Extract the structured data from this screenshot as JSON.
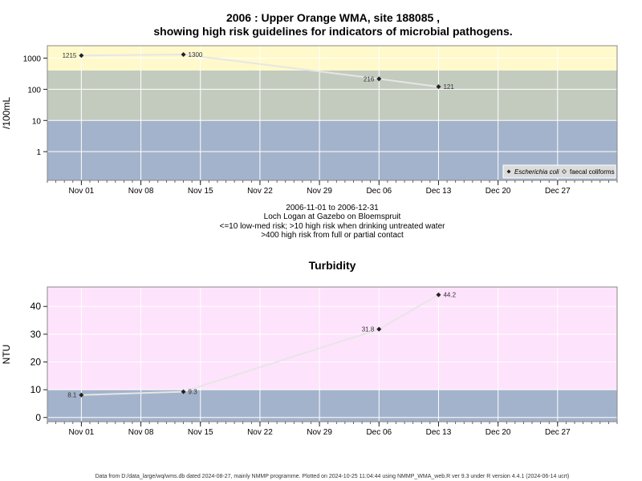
{
  "figure": {
    "title_line1": "2006 : Upper Orange WMA, site 188085 ,",
    "title_line2": "showing high risk guidelines for indicators of microbial pathogens.",
    "footer": "Data from D:/data_large/wq/wms.db dated 2024-08-27, mainly NMMP programme. Plotted on 2024-10-25 11:04:44 using NMMP_WMA_web.R ver 9.3 under R version 4.4.1 (2024-06-14 ucrt)"
  },
  "colors": {
    "band_low": "#a3b3cb",
    "band_mid": "#c3cbbf",
    "band_high": "#fff9cb",
    "turb_low": "#a3b3cb",
    "turb_high": "#fde3fb",
    "line": "#e6e6e6",
    "marker": "#222222"
  },
  "chart_data": [
    {
      "type": "line",
      "title": "",
      "ylabel": "/100mL",
      "yscale": "log",
      "ylim": [
        0.12,
        2500
      ],
      "xlim": [
        "2006-10-28",
        "2007-01-03"
      ],
      "y_ticks": [
        1,
        10,
        100,
        1000
      ],
      "y_tick_labels": [
        "1",
        "10",
        "100",
        "1000"
      ],
      "x_ticks": [
        "2006-11-01",
        "2006-11-08",
        "2006-11-15",
        "2006-11-22",
        "2006-11-29",
        "2006-12-06",
        "2006-12-13",
        "2006-12-20",
        "2006-12-27"
      ],
      "x_tick_labels": [
        "Nov 01",
        "Nov 08",
        "Nov 15",
        "Nov 22",
        "Nov 29",
        "Dec 06",
        "Dec 13",
        "Dec 20",
        "Dec 27"
      ],
      "bands": [
        {
          "from": 0.12,
          "to": 10,
          "color": "band_low"
        },
        {
          "from": 10,
          "to": 400,
          "color": "band_mid"
        },
        {
          "from": 400,
          "to": 2500,
          "color": "band_high"
        }
      ],
      "grid": true,
      "series": [
        {
          "name": "Escherichia coli",
          "x": [
            "2006-11-01",
            "2006-11-13",
            "2006-12-06",
            "2006-12-13"
          ],
          "values": [
            1215,
            1300,
            216,
            121
          ],
          "labels": [
            "1215",
            "1300",
            "216",
            "121"
          ],
          "label_side": [
            "left",
            "right",
            "left",
            "right"
          ]
        }
      ],
      "legend": {
        "position": "bottom-right",
        "entries": [
          "Escherichia coli",
          "faecal coliforms"
        ]
      },
      "notes": [
        "2006-11-01 to 2006-12-31",
        "Loch Logan at Gazebo on Bloemspruit",
        "<=10 low-med risk; >10 high risk when drinking untreated water",
        ">400 high risk from full or partial contact"
      ]
    },
    {
      "type": "line",
      "title": "Turbidity",
      "ylabel": "NTU",
      "yscale": "linear",
      "ylim": [
        -1.5,
        47
      ],
      "xlim": [
        "2006-10-28",
        "2007-01-03"
      ],
      "y_ticks": [
        0,
        10,
        20,
        30,
        40
      ],
      "y_tick_labels": [
        "0",
        "10",
        "20",
        "30",
        "40"
      ],
      "x_ticks": [
        "2006-11-01",
        "2006-11-08",
        "2006-11-15",
        "2006-11-22",
        "2006-11-29",
        "2006-12-06",
        "2006-12-13",
        "2006-12-20",
        "2006-12-27"
      ],
      "x_tick_labels": [
        "Nov 01",
        "Nov 08",
        "Nov 15",
        "Nov 22",
        "Nov 29",
        "Dec 06",
        "Dec 13",
        "Dec 20",
        "Dec 27"
      ],
      "bands": [
        {
          "from": -1.5,
          "to": 10,
          "color": "turb_low"
        },
        {
          "from": 10,
          "to": 47,
          "color": "turb_high"
        }
      ],
      "grid": true,
      "series": [
        {
          "x": [
            "2006-11-01",
            "2006-11-13",
            "2006-12-06",
            "2006-12-13"
          ],
          "values": [
            8.1,
            9.3,
            31.8,
            44.2
          ],
          "labels": [
            "8.1",
            "9.3",
            "31.8",
            "44.2"
          ],
          "label_side": [
            "left",
            "right",
            "left",
            "right"
          ]
        }
      ]
    }
  ]
}
